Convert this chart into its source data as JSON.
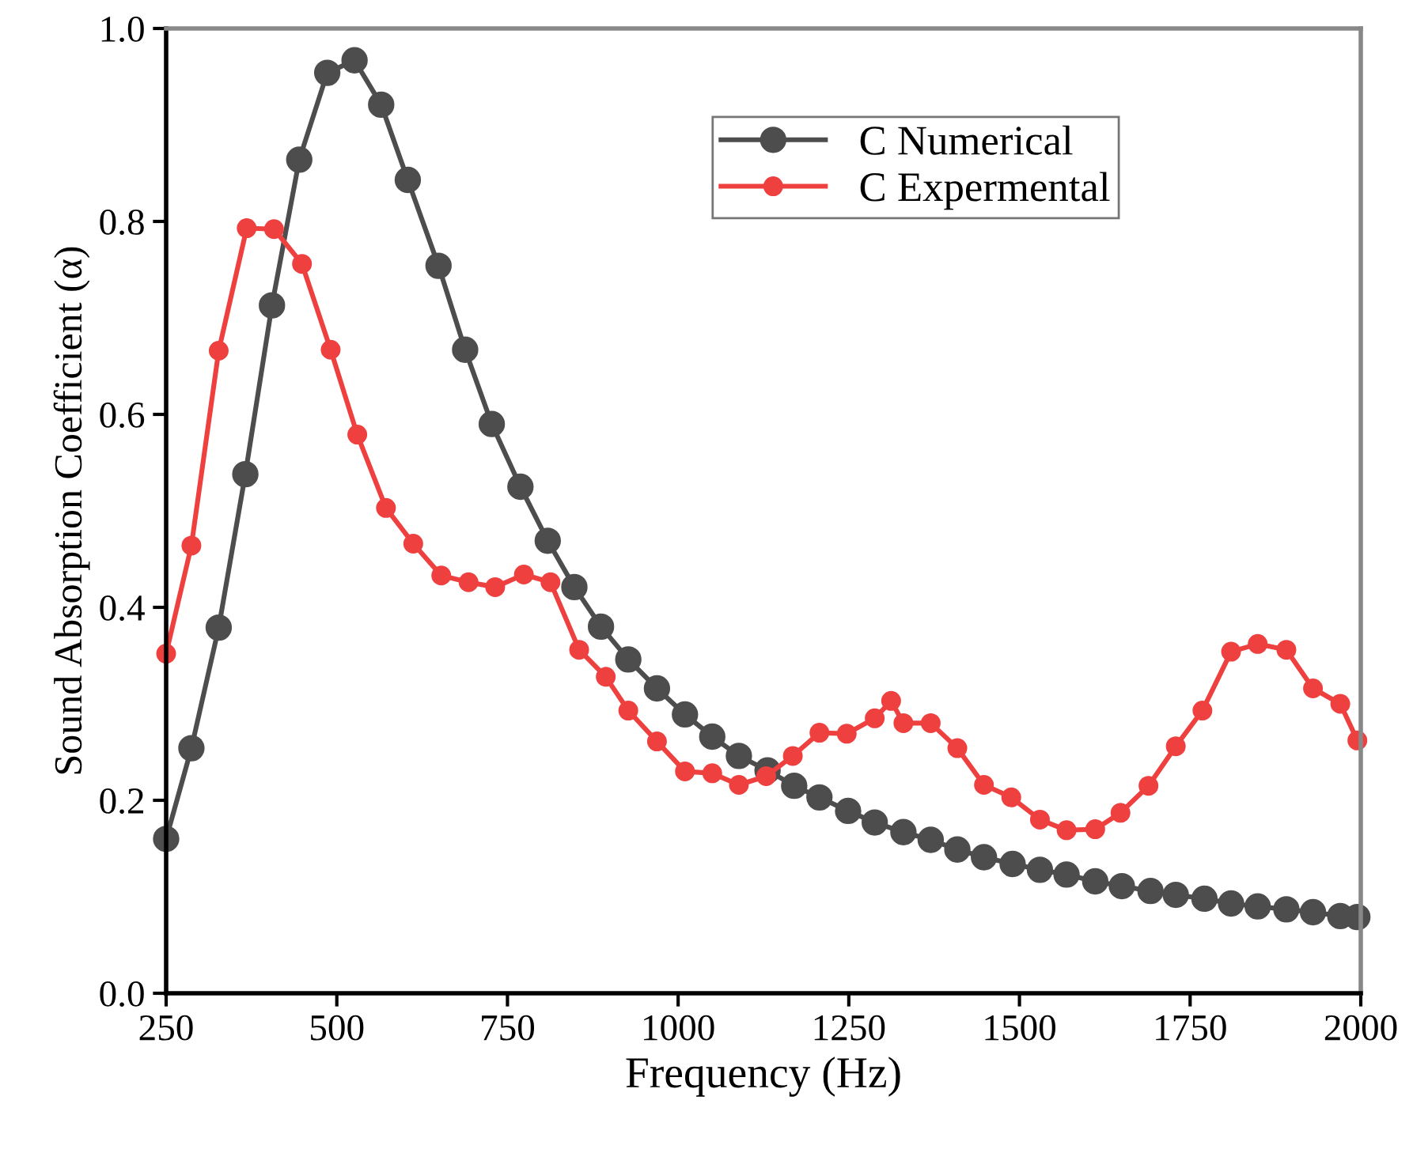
{
  "chart_data": {
    "type": "line",
    "xlabel": "Frequency (Hz)",
    "ylabel": "Sound Absorption Coefficient (α)",
    "xlim": [
      250,
      2000
    ],
    "xticks": [
      250,
      500,
      750,
      1000,
      1250,
      1500,
      1750,
      2000
    ],
    "ylim": [
      0,
      1.0
    ],
    "yticks": [
      {
        "value": 0,
        "label": "0.0"
      },
      0.2,
      0.4,
      0.6,
      0.8,
      {
        "value": 1.0,
        "label": "1.0"
      }
    ],
    "grid": false,
    "legend": "top right",
    "marker": "circle",
    "line_style": "solid",
    "series": [
      {
        "name": "C Numerical",
        "color": "#4d4d4d",
        "x": [
          250,
          287,
          327,
          366,
          405,
          445,
          486,
          526,
          565,
          604,
          649,
          688,
          727,
          769,
          809,
          848,
          887,
          927,
          969,
          1010,
          1050,
          1089,
          1131,
          1170,
          1207,
          1249,
          1288,
          1330,
          1370,
          1409,
          1448,
          1490,
          1530,
          1569,
          1611,
          1650,
          1692,
          1729,
          1771,
          1810,
          1849,
          1891,
          1930,
          1970,
          1995
        ],
        "values": [
          0.16,
          0.254,
          0.379,
          0.538,
          0.713,
          0.864,
          0.954,
          0.967,
          0.921,
          0.843,
          0.754,
          0.667,
          0.59,
          0.525,
          0.469,
          0.421,
          0.38,
          0.346,
          0.316,
          0.289,
          0.266,
          0.246,
          0.231,
          0.215,
          0.203,
          0.189,
          0.177,
          0.167,
          0.159,
          0.149,
          0.141,
          0.134,
          0.128,
          0.123,
          0.116,
          0.111,
          0.106,
          0.102,
          0.098,
          0.093,
          0.09,
          0.087,
          0.084,
          0.08,
          0.079
        ]
      },
      {
        "name": "C Expermental",
        "color": "#ef4040",
        "x": [
          250,
          287,
          327,
          368,
          408,
          449,
          491,
          530,
          572,
          612,
          653,
          693,
          732,
          774,
          813,
          855,
          894,
          927,
          969,
          1010,
          1050,
          1089,
          1129,
          1168,
          1207,
          1247,
          1288,
          1312,
          1330,
          1370,
          1409,
          1448,
          1488,
          1530,
          1569,
          1611,
          1648,
          1689,
          1729,
          1768,
          1810,
          1849,
          1891,
          1930,
          1970,
          1995
        ],
        "values": [
          0.352,
          0.464,
          0.666,
          0.793,
          0.792,
          0.756,
          0.667,
          0.579,
          0.503,
          0.466,
          0.433,
          0.426,
          0.421,
          0.434,
          0.426,
          0.356,
          0.328,
          0.293,
          0.261,
          0.23,
          0.228,
          0.216,
          0.225,
          0.246,
          0.27,
          0.269,
          0.285,
          0.303,
          0.28,
          0.28,
          0.254,
          0.216,
          0.203,
          0.18,
          0.169,
          0.17,
          0.187,
          0.215,
          0.256,
          0.293,
          0.354,
          0.362,
          0.356,
          0.316,
          0.3,
          0.262
        ]
      }
    ]
  }
}
